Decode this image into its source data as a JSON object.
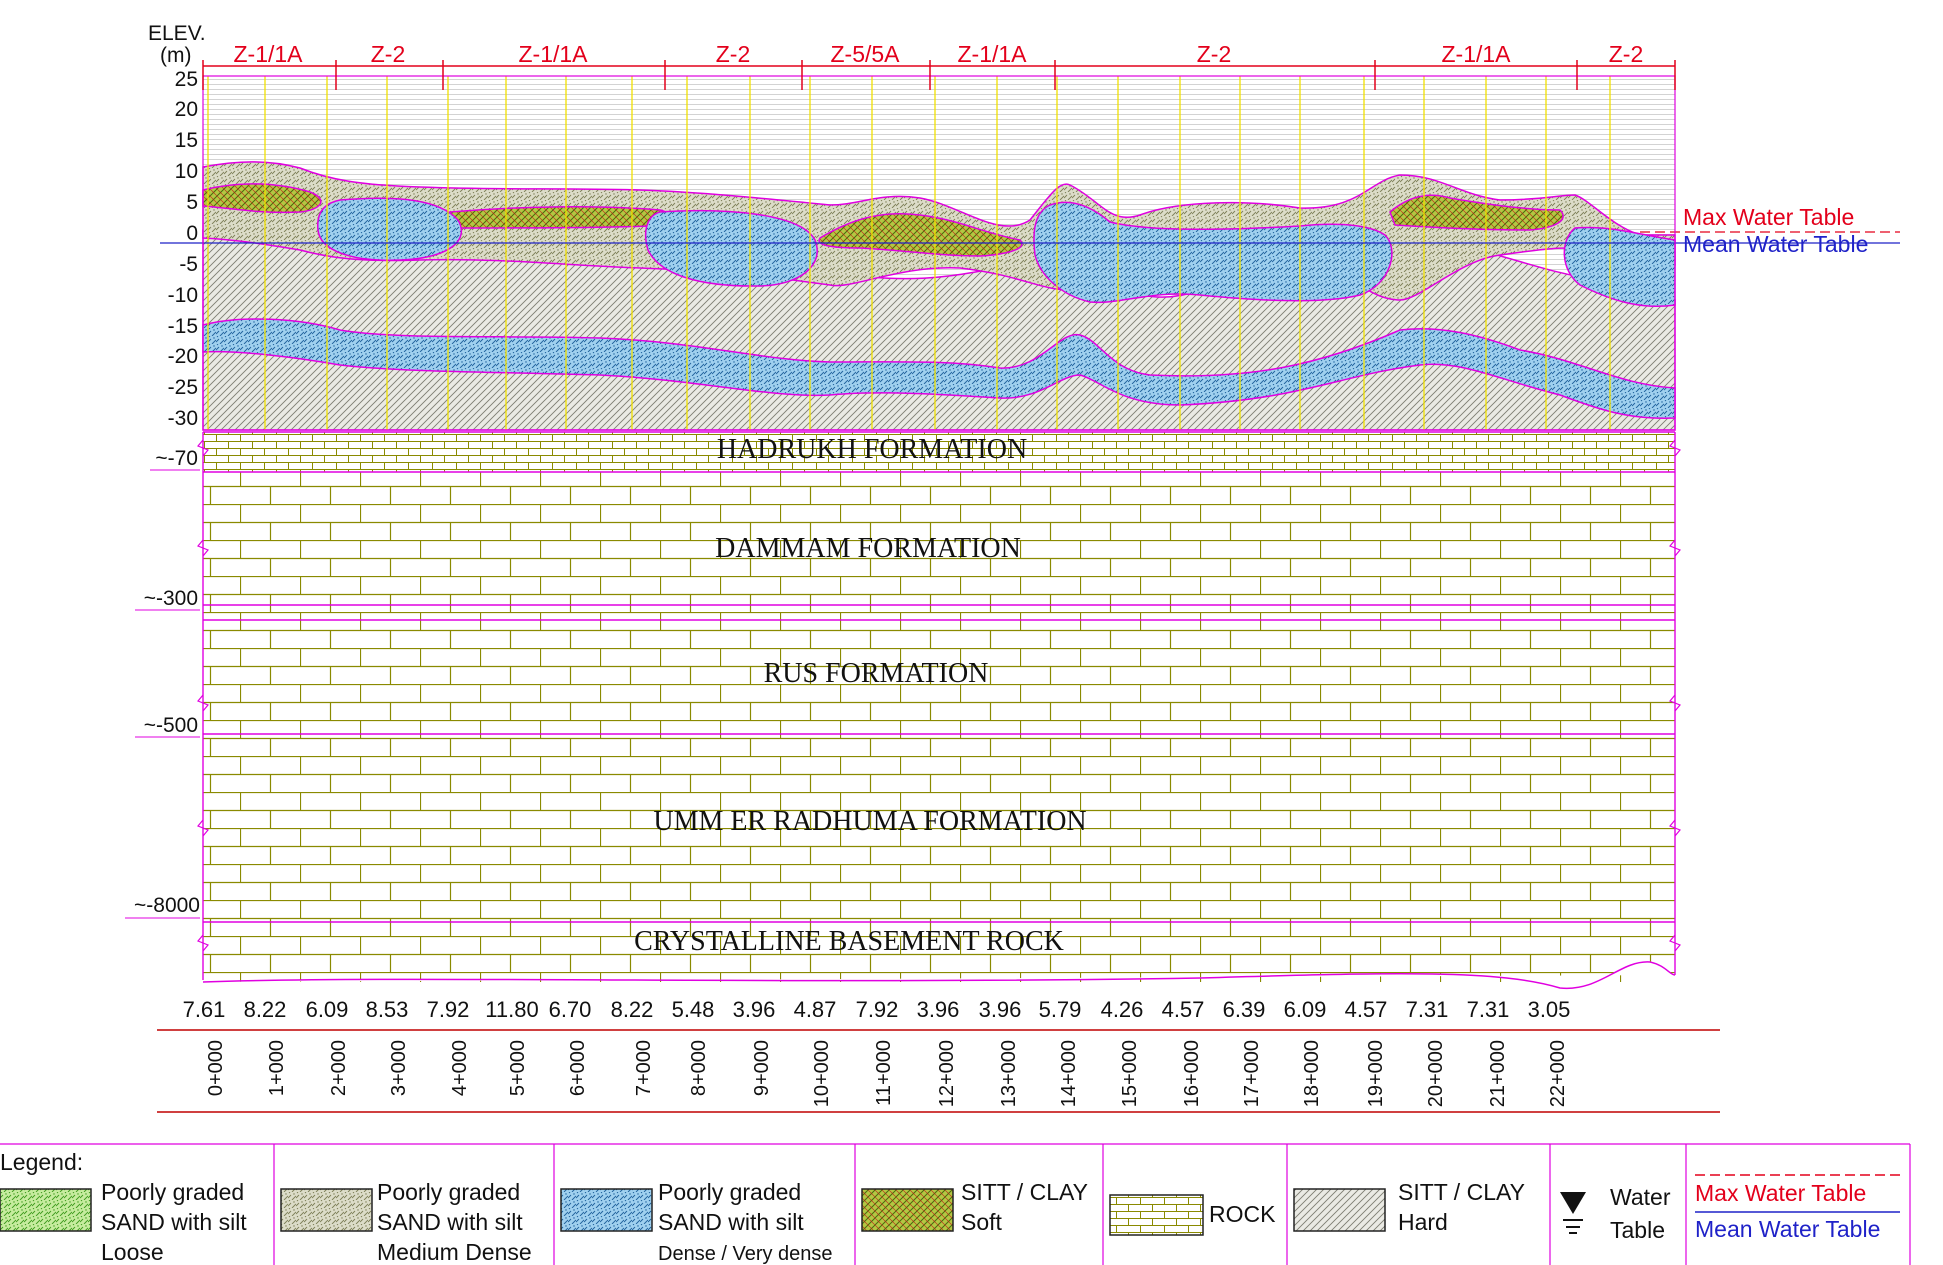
{
  "elev_axis": {
    "label_line1": "ELEV.",
    "label_line2": "(m)",
    "ticks": [
      "25",
      "20",
      "15",
      "10",
      "5",
      "0",
      "-5",
      "-10",
      "-15",
      "-20",
      "-25",
      "-30"
    ],
    "deep_ticks": [
      "~-70",
      "~-300",
      "~-500",
      "~-8000"
    ]
  },
  "zones": [
    "Z-1/1A",
    "Z-2",
    "Z-1/1A",
    "Z-2",
    "Z-5/5A",
    "Z-1/1A",
    "Z-2",
    "Z-1/1A",
    "Z-2"
  ],
  "water_tables": {
    "max_label": "Max Water Table",
    "mean_label": "Mean Water Table",
    "max_color": "#e3001b",
    "mean_color": "#1f22c8"
  },
  "formations": [
    "HADRUKH FORMATION",
    "DAMMAM FORMATION",
    "RUS FORMATION",
    "UMM ER RADHUMA FORMATION",
    "CRYSTALLINE BASEMENT ROCK"
  ],
  "depths": [
    "7.61",
    "8.22",
    "6.09",
    "8.53",
    "7.92",
    "11.80",
    "6.70",
    "8.22",
    "5.48",
    "3.96",
    "4.87",
    "7.92",
    "3.96",
    "3.96",
    "5.79",
    "4.26",
    "4.57",
    "6.39",
    "6.09",
    "4.57",
    "7.31",
    "7.31",
    "3.05"
  ],
  "chainages": [
    "0+000",
    "1+000",
    "2+000",
    "3+000",
    "4+000",
    "5+000",
    "6+000",
    "7+000",
    "8+000",
    "9+000",
    "10+000",
    "11+000",
    "12+000",
    "13+000",
    "14+000",
    "15+000",
    "16+000",
    "17+000",
    "18+000",
    "19+000",
    "20+000",
    "21+000",
    "22+000"
  ],
  "legend": {
    "title": "Legend:",
    "items": [
      {
        "lines": [
          "Poorly graded",
          "SAND with silt",
          "Loose"
        ],
        "pattern": "sand-loose"
      },
      {
        "lines": [
          "Poorly graded",
          "SAND with silt",
          "Medium Dense"
        ],
        "pattern": "sand-medium"
      },
      {
        "lines": [
          "Poorly graded",
          "SAND with silt",
          "Dense / Very dense"
        ],
        "pattern": "sand-dense"
      },
      {
        "lines": [
          "SITT / CLAY",
          "Soft"
        ],
        "pattern": "clay-soft"
      },
      {
        "lines": [
          "ROCK"
        ],
        "pattern": "rock"
      },
      {
        "lines": [
          "SITT / CLAY",
          "Hard"
        ],
        "pattern": "clay-hard"
      }
    ],
    "water_table": [
      "Water",
      "Table"
    ],
    "max_water_table": "Max Water Table",
    "mean_water_table": "Mean Water Table"
  },
  "colors": {
    "zone_red": "#e3001b",
    "layer_outline": "#e000e0",
    "rock_lines": "#8a8a00",
    "sand_loose": "#8fd16a",
    "sand_medium": "#c5c7a2",
    "sand_dense": "#5aa4d6",
    "clay_soft": "#7a9a1a",
    "clay_hard": "#c9c9c0",
    "borehole_yellow": "#f0e000"
  }
}
